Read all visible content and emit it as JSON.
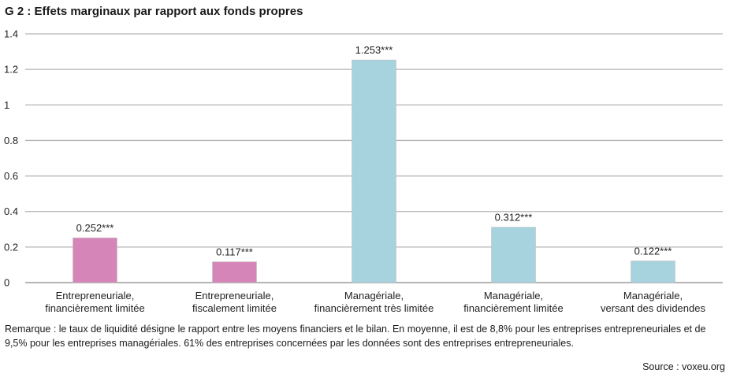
{
  "title": "G 2 : Effets marginaux par rapport aux fonds propres",
  "note": "Remarque : le taux de liquidité désigne le rapport entre les moyens financiers et le bilan. En moyenne, il est de 8,8% pour les entreprises entrepreneuriales et de 9,5% pour les entreprises managériales. 61% des entreprises concernées par les données sont des entreprises entrepreneuriales.",
  "source": "Source : voxeu.org",
  "chart_data": {
    "type": "bar",
    "title": "G 2 : Effets marginaux par rapport aux fonds propres",
    "categories": [
      [
        "Entrepreneuriale,",
        "financièrement limitée"
      ],
      [
        "Entrepreneuriale,",
        "fiscalement limitée"
      ],
      [
        "Managériale,",
        "financièrement très limitée"
      ],
      [
        "Managériale,",
        "financièrement limitée"
      ],
      [
        "Managériale,",
        "versant des dividendes"
      ]
    ],
    "values": [
      0.252,
      0.117,
      1.253,
      0.312,
      0.122
    ],
    "labels": [
      "0.252***",
      "0.117***",
      "1.253***",
      "0.312***",
      "0.122***"
    ],
    "colors": [
      "#d685b8",
      "#d685b8",
      "#a7d3de",
      "#a7d3de",
      "#a7d3de"
    ],
    "yticks": [
      "0",
      "0.2",
      "0.4",
      "0.6",
      "0.8",
      "1",
      "1.2",
      "1.4"
    ],
    "ylim": [
      0,
      1.4
    ],
    "grid": true,
    "xlabel": "",
    "ylabel": ""
  }
}
